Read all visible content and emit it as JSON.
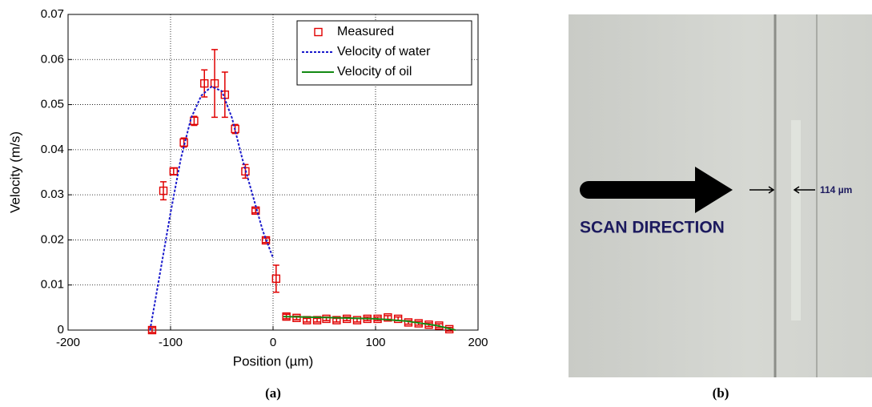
{
  "chart_data": {
    "type": "scatter",
    "panel_label": "(a)",
    "xlabel": "Position (µm)",
    "ylabel": "Velocity (m/s)",
    "xlim": [
      -200,
      200
    ],
    "xticks": [
      -200,
      -100,
      0,
      100,
      200
    ],
    "ylim": [
      0,
      0.07
    ],
    "yticks": [
      0,
      0.01,
      0.02,
      0.03,
      0.04,
      0.05,
      0.06,
      0.07
    ],
    "grid": true,
    "legend": "upper right",
    "series": [
      {
        "name": "Measured",
        "color": "#e00000",
        "marker": "square",
        "line_style": "none",
        "x": [
          -118,
          -107,
          -97,
          -87,
          -77,
          -67,
          -57,
          -47,
          -37,
          -27,
          -17,
          -7,
          3,
          13,
          23,
          33,
          43,
          52,
          62,
          72,
          82,
          92,
          102,
          112,
          122,
          132,
          142,
          152,
          162,
          172
        ],
        "values": [
          0,
          0.0309,
          0.0352,
          0.0416,
          0.0464,
          0.0547,
          0.0547,
          0.0522,
          0.0446,
          0.0352,
          0.0265,
          0.0199,
          0.0114,
          0.003,
          0.0027,
          0.0022,
          0.0022,
          0.0025,
          0.0022,
          0.0025,
          0.0022,
          0.0025,
          0.0025,
          0.0028,
          0.0025,
          0.0017,
          0.0015,
          0.0012,
          0.001,
          0.0002
        ],
        "errors": [
          0.0005,
          0.002,
          0.0007,
          0.001,
          0.001,
          0.003,
          0.0075,
          0.005,
          0.001,
          0.0015,
          0.0005,
          0.0005,
          0.003,
          0.0005,
          0.0004,
          0.0004,
          0.0004,
          0.0004,
          0.0004,
          0.0004,
          0.0004,
          0.0004,
          0.0004,
          0.0004,
          0.0004,
          0.0004,
          0.0004,
          0.0004,
          0.0004,
          0.0004
        ]
      },
      {
        "name": "Velocity of water",
        "color": "#1a1acc",
        "marker": "none",
        "line_style": "dotted",
        "x": [
          -120,
          -110,
          -100,
          -90,
          -80,
          -70,
          -60,
          -50,
          -40,
          -30,
          -20,
          -10,
          0
        ],
        "values": [
          0,
          0.013,
          0.026,
          0.038,
          0.047,
          0.052,
          0.054,
          0.053,
          0.047,
          0.038,
          0.03,
          0.022,
          0.016
        ]
      },
      {
        "name": "Velocity of oil",
        "color": "#138a13",
        "marker": "none",
        "line_style": "solid",
        "x": [
          10,
          50,
          100,
          130,
          160,
          178
        ],
        "values": [
          0.003,
          0.0028,
          0.0025,
          0.002,
          0.001,
          0
        ]
      }
    ]
  },
  "panel_b": {
    "panel_label": "(b)",
    "direction_label": "SCAN DIRECTION",
    "width_label": "114 µm"
  }
}
